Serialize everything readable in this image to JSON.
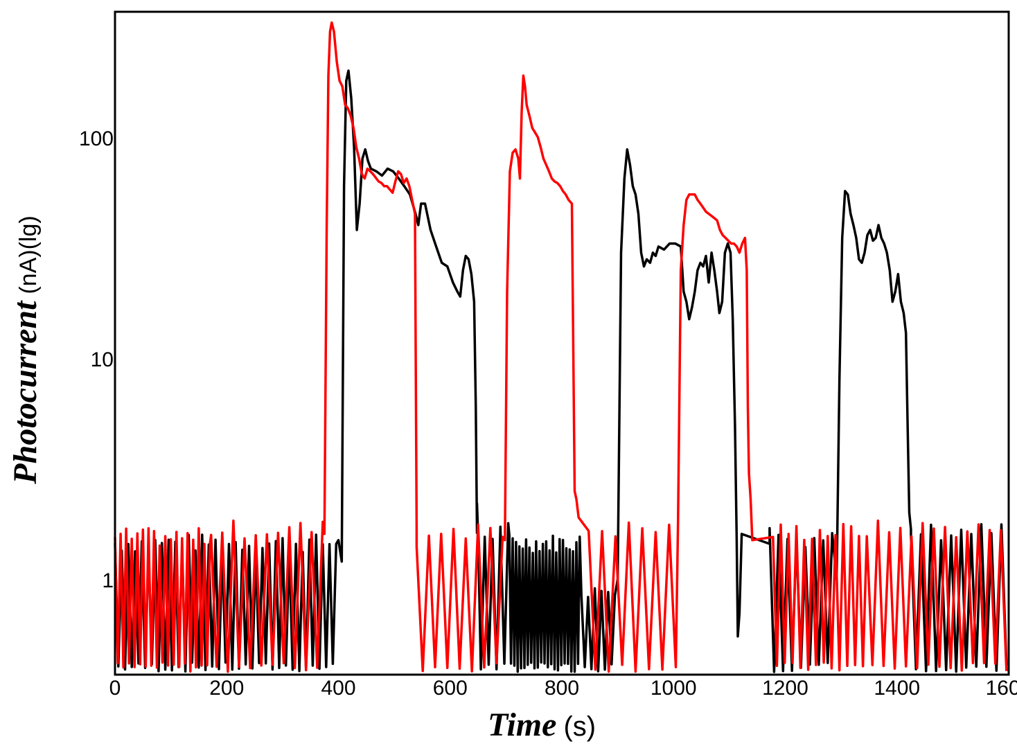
{
  "chart_data": {
    "type": "line",
    "xlabel": "Time",
    "xlabel_unit": "(s)",
    "ylabel": "Photocurrent",
    "ylabel_unit": "(nA)(lg)",
    "xlim": [
      0,
      1600
    ],
    "ylim": [
      0.4,
      350
    ],
    "y_scale": "log",
    "x_ticks": [
      "0",
      "200",
      "400",
      "600",
      "800",
      "1000",
      "1200",
      "1400",
      "1600"
    ],
    "y_ticks": [
      "1",
      "10",
      "100"
    ],
    "grid": false,
    "legend": "none",
    "series": [
      {
        "color": "#000000",
        "noise": [
          {
            "start": 0,
            "end": 400,
            "lo": 0.4,
            "hi": 1.6,
            "step": 6
          },
          {
            "start": 648,
            "end": 706,
            "lo": 0.4,
            "hi": 1.8,
            "step": 7
          },
          {
            "start": 706,
            "end": 835,
            "lo": 0.4,
            "hi": 1.6,
            "step": 3
          },
          {
            "start": 835,
            "end": 900,
            "lo": 0.4,
            "hi": 1.0,
            "step": 6
          },
          {
            "start": 1172,
            "end": 1292,
            "lo": 0.4,
            "hi": 1.7,
            "step": 8
          },
          {
            "start": 1425,
            "end": 1600,
            "lo": 0.4,
            "hi": 1.8,
            "step": 9
          }
        ],
        "points": [
          [
            400,
            1.5
          ],
          [
            406,
            1.2
          ],
          [
            410,
            60
          ],
          [
            414,
            180
          ],
          [
            418,
            200
          ],
          [
            423,
            150
          ],
          [
            428,
            90
          ],
          [
            433,
            38
          ],
          [
            438,
            50
          ],
          [
            443,
            80
          ],
          [
            448,
            88
          ],
          [
            453,
            78
          ],
          [
            458,
            72
          ],
          [
            468,
            70
          ],
          [
            478,
            67
          ],
          [
            488,
            72
          ],
          [
            498,
            70
          ],
          [
            508,
            65
          ],
          [
            518,
            60
          ],
          [
            528,
            55
          ],
          [
            538,
            45
          ],
          [
            543,
            40
          ],
          [
            548,
            50
          ],
          [
            555,
            50
          ],
          [
            565,
            38
          ],
          [
            575,
            32
          ],
          [
            585,
            27
          ],
          [
            595,
            26
          ],
          [
            605,
            22
          ],
          [
            613,
            20
          ],
          [
            618,
            19
          ],
          [
            623,
            25
          ],
          [
            628,
            29
          ],
          [
            633,
            28
          ],
          [
            638,
            24
          ],
          [
            643,
            18
          ],
          [
            646,
            6
          ],
          [
            648,
            2.2
          ],
          [
            650,
            1.6
          ],
          [
            900,
            1.0
          ],
          [
            906,
            30
          ],
          [
            912,
            65
          ],
          [
            917,
            88
          ],
          [
            922,
            75
          ],
          [
            927,
            60
          ],
          [
            932,
            55
          ],
          [
            937,
            45
          ],
          [
            942,
            30
          ],
          [
            947,
            26
          ],
          [
            952,
            28
          ],
          [
            958,
            27
          ],
          [
            963,
            30
          ],
          [
            968,
            29
          ],
          [
            973,
            32
          ],
          [
            983,
            31
          ],
          [
            993,
            33
          ],
          [
            1003,
            33
          ],
          [
            1013,
            32
          ],
          [
            1018,
            20
          ],
          [
            1023,
            18
          ],
          [
            1028,
            15
          ],
          [
            1033,
            17
          ],
          [
            1038,
            20
          ],
          [
            1043,
            25
          ],
          [
            1048,
            27
          ],
          [
            1053,
            26
          ],
          [
            1058,
            29
          ],
          [
            1063,
            22
          ],
          [
            1068,
            30
          ],
          [
            1073,
            25
          ],
          [
            1078,
            20
          ],
          [
            1082,
            16
          ],
          [
            1087,
            18
          ],
          [
            1092,
            30
          ],
          [
            1097,
            33
          ],
          [
            1102,
            30
          ],
          [
            1106,
            15
          ],
          [
            1110,
            5
          ],
          [
            1113,
            1.5
          ],
          [
            1115,
            0.55
          ],
          [
            1118,
            0.7
          ],
          [
            1122,
            1.6
          ],
          [
            1172,
            1.7
          ],
          [
            1292,
            1.0
          ],
          [
            1297,
            8
          ],
          [
            1302,
            35
          ],
          [
            1307,
            57
          ],
          [
            1312,
            55
          ],
          [
            1317,
            45
          ],
          [
            1322,
            40
          ],
          [
            1327,
            35
          ],
          [
            1332,
            28
          ],
          [
            1337,
            27
          ],
          [
            1342,
            30
          ],
          [
            1347,
            36
          ],
          [
            1352,
            38
          ],
          [
            1357,
            34
          ],
          [
            1362,
            35
          ],
          [
            1367,
            40
          ],
          [
            1372,
            35
          ],
          [
            1377,
            33
          ],
          [
            1382,
            30
          ],
          [
            1387,
            25
          ],
          [
            1392,
            18
          ],
          [
            1397,
            20
          ],
          [
            1402,
            24
          ],
          [
            1407,
            18
          ],
          [
            1412,
            16
          ],
          [
            1416,
            13
          ],
          [
            1419,
            5
          ],
          [
            1422,
            2
          ],
          [
            1425,
            1.6
          ]
        ]
      },
      {
        "color": "#ff0000",
        "noise": [
          {
            "start": 0,
            "end": 172,
            "lo": 0.4,
            "hi": 1.7,
            "step": 5
          },
          {
            "start": 172,
            "end": 375,
            "lo": 0.4,
            "hi": 1.85,
            "step": 10
          },
          {
            "start": 540,
            "end": 698,
            "lo": 0.4,
            "hi": 1.85,
            "step": 11
          },
          {
            "start": 848,
            "end": 1008,
            "lo": 0.4,
            "hi": 1.85,
            "step": 12
          },
          {
            "start": 1178,
            "end": 1346,
            "lo": 0.4,
            "hi": 1.8,
            "step": 7
          },
          {
            "start": 1346,
            "end": 1600,
            "lo": 0.4,
            "hi": 1.85,
            "step": 10
          }
        ],
        "points": [
          [
            375,
            1.6
          ],
          [
            379,
            40
          ],
          [
            382,
            190
          ],
          [
            385,
            300
          ],
          [
            388,
            330
          ],
          [
            392,
            300
          ],
          [
            397,
            220
          ],
          [
            402,
            180
          ],
          [
            407,
            170
          ],
          [
            412,
            140
          ],
          [
            417,
            135
          ],
          [
            422,
            125
          ],
          [
            427,
            110
          ],
          [
            432,
            90
          ],
          [
            437,
            80
          ],
          [
            442,
            68
          ],
          [
            447,
            65
          ],
          [
            452,
            72
          ],
          [
            457,
            70
          ],
          [
            462,
            68
          ],
          [
            472,
            63
          ],
          [
            477,
            62
          ],
          [
            482,
            60
          ],
          [
            487,
            60
          ],
          [
            492,
            58
          ],
          [
            497,
            56
          ],
          [
            502,
            63
          ],
          [
            507,
            70
          ],
          [
            512,
            68
          ],
          [
            517,
            62
          ],
          [
            522,
            65
          ],
          [
            527,
            60
          ],
          [
            532,
            52
          ],
          [
            537,
            45
          ],
          [
            539,
            5
          ],
          [
            540,
            1.4
          ],
          [
            698,
            1.5
          ],
          [
            702,
            20
          ],
          [
            707,
            70
          ],
          [
            712,
            85
          ],
          [
            717,
            88
          ],
          [
            722,
            80
          ],
          [
            725,
            65
          ],
          [
            728,
            130
          ],
          [
            731,
            190
          ],
          [
            734,
            170
          ],
          [
            737,
            140
          ],
          [
            742,
            125
          ],
          [
            747,
            110
          ],
          [
            752,
            105
          ],
          [
            757,
            100
          ],
          [
            762,
            90
          ],
          [
            767,
            80
          ],
          [
            772,
            75
          ],
          [
            777,
            70
          ],
          [
            782,
            65
          ],
          [
            787,
            63
          ],
          [
            792,
            62
          ],
          [
            797,
            60
          ],
          [
            802,
            57
          ],
          [
            807,
            55
          ],
          [
            812,
            52
          ],
          [
            818,
            50
          ],
          [
            820,
            15
          ],
          [
            823,
            2.5
          ],
          [
            826,
            2.3
          ],
          [
            830,
            1.9
          ],
          [
            1008,
            1.8
          ],
          [
            1013,
            25
          ],
          [
            1018,
            40
          ],
          [
            1023,
            52
          ],
          [
            1028,
            55
          ],
          [
            1033,
            55
          ],
          [
            1038,
            55
          ],
          [
            1043,
            52
          ],
          [
            1048,
            50
          ],
          [
            1053,
            48
          ],
          [
            1058,
            46
          ],
          [
            1063,
            45
          ],
          [
            1068,
            44
          ],
          [
            1073,
            43
          ],
          [
            1078,
            42
          ],
          [
            1083,
            38
          ],
          [
            1088,
            36
          ],
          [
            1093,
            35
          ],
          [
            1098,
            34
          ],
          [
            1103,
            33
          ],
          [
            1108,
            33
          ],
          [
            1113,
            32
          ],
          [
            1118,
            30
          ],
          [
            1123,
            33
          ],
          [
            1128,
            35
          ],
          [
            1131,
            25
          ],
          [
            1133,
            6
          ],
          [
            1135,
            3
          ],
          [
            1138,
            2.3
          ],
          [
            1141,
            1.5
          ]
        ]
      }
    ]
  }
}
